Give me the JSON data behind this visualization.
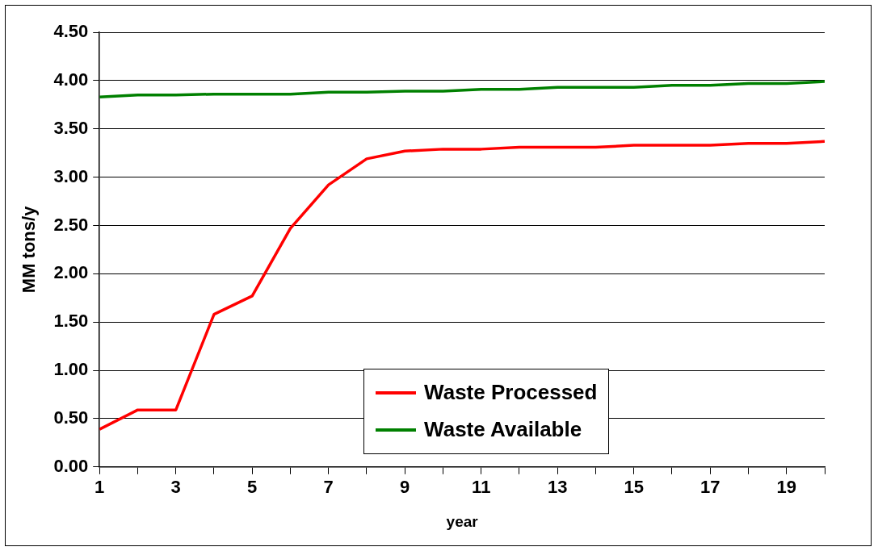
{
  "chart_data": {
    "type": "line",
    "xlabel": "year",
    "ylabel": "MM tons/y",
    "x": [
      1,
      2,
      3,
      4,
      5,
      6,
      7,
      8,
      9,
      10,
      11,
      12,
      13,
      14,
      15,
      16,
      17,
      18,
      19,
      20
    ],
    "series": [
      {
        "name": "Waste Processed",
        "color": "#ff0000",
        "values": [
          0.39,
          0.59,
          0.59,
          1.58,
          1.77,
          2.47,
          2.92,
          3.19,
          3.27,
          3.29,
          3.29,
          3.31,
          3.31,
          3.31,
          3.33,
          3.33,
          3.33,
          3.35,
          3.35,
          3.37
        ]
      },
      {
        "name": "Waste Available",
        "color": "#008000",
        "values": [
          3.83,
          3.85,
          3.85,
          3.86,
          3.86,
          3.86,
          3.88,
          3.88,
          3.89,
          3.89,
          3.91,
          3.91,
          3.93,
          3.93,
          3.93,
          3.95,
          3.95,
          3.97,
          3.97,
          3.99
        ]
      }
    ],
    "xlim": [
      1,
      20
    ],
    "xticks": [
      1,
      {
        "value": 2,
        "label": null
      },
      3,
      {
        "value": 4,
        "label": null
      },
      5,
      {
        "value": 6,
        "label": null
      },
      7,
      {
        "value": 8,
        "label": null
      },
      9,
      {
        "value": 10,
        "label": null
      },
      11,
      {
        "value": 12,
        "label": null
      },
      13,
      {
        "value": 14,
        "label": null
      },
      15,
      {
        "value": 16,
        "label": null
      },
      17,
      {
        "value": 18,
        "label": null
      },
      19,
      {
        "value": 20,
        "label": null
      }
    ],
    "ylim": [
      0,
      4.5
    ],
    "yticks": [
      {
        "value": 0,
        "label": "0.00"
      },
      {
        "value": 0.5,
        "label": "0.50"
      },
      {
        "value": 1,
        "label": "1.00"
      },
      {
        "value": 1.5,
        "label": "1.50"
      },
      {
        "value": 2,
        "label": "2.00"
      },
      {
        "value": 2.5,
        "label": "2.50"
      },
      {
        "value": 3,
        "label": "3.00"
      },
      {
        "value": 3.5,
        "label": "3.50"
      },
      {
        "value": 4,
        "label": "4.00"
      },
      {
        "value": 4.5,
        "label": "4.50"
      }
    ],
    "grid": "y",
    "legend": "bottom",
    "marker": "none",
    "line_style": "solid"
  }
}
